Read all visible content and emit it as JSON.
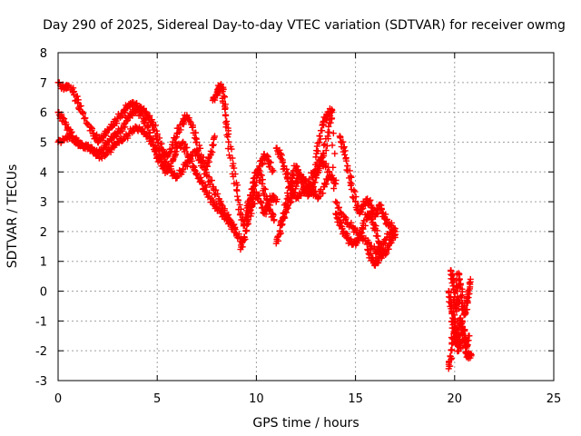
{
  "chart_data": {
    "type": "scatter",
    "title": "Day 290 of 2025, Sidereal Day-to-day VTEC variation (SDTVAR) for receiver owmg",
    "xlabel": "GPS time / hours",
    "ylabel": "SDTVAR / TECUs",
    "xlim": [
      0,
      25
    ],
    "ylim": [
      -3,
      8
    ],
    "xticks": [
      0,
      5,
      10,
      15,
      20,
      25
    ],
    "yticks": [
      -3,
      -2,
      -1,
      0,
      1,
      2,
      3,
      4,
      5,
      6,
      7,
      8
    ],
    "grid": true,
    "marker": "+",
    "color": "#ff0000",
    "series": [
      {
        "name": "SDTVAR",
        "segments": [
          {
            "x": [
              0.0,
              0.3,
              0.5,
              0.8,
              1.0,
              1.2,
              1.5,
              1.8,
              2.0,
              2.3,
              2.5,
              2.8,
              3.0,
              3.3,
              3.5,
              3.8,
              4.0,
              4.2,
              4.4,
              4.6,
              4.8,
              5.0,
              5.2,
              5.5,
              5.8,
              6.0,
              6.3,
              6.5,
              6.8,
              7.0,
              7.2,
              7.5,
              7.7,
              7.9
            ],
            "y": [
              7.0,
              6.8,
              6.9,
              6.7,
              6.3,
              6.0,
              5.6,
              5.3,
              5.0,
              5.2,
              5.4,
              5.6,
              5.8,
              6.0,
              6.2,
              6.3,
              6.2,
              6.1,
              6.0,
              5.8,
              5.6,
              5.2,
              4.8,
              4.5,
              4.9,
              5.3,
              5.7,
              5.9,
              5.5,
              5.0,
              4.5,
              4.2,
              4.6,
              5.2
            ]
          },
          {
            "x": [
              0.0,
              0.2,
              0.5,
              0.7,
              1.0,
              1.3,
              1.5,
              1.8,
              2.0,
              2.3,
              2.5,
              2.8,
              3.0,
              3.3,
              3.5,
              3.8,
              4.0,
              4.3,
              4.5,
              4.8,
              5.0,
              5.3,
              5.5,
              5.8,
              6.0,
              6.3,
              6.5,
              6.8,
              7.0,
              7.3,
              7.5,
              7.8,
              8.0,
              8.3,
              8.5,
              8.7,
              8.9
            ],
            "y": [
              6.0,
              5.8,
              5.5,
              5.2,
              5.0,
              4.8,
              4.9,
              4.7,
              4.6,
              4.8,
              5.0,
              5.2,
              5.3,
              5.5,
              5.8,
              6.0,
              6.1,
              5.8,
              5.5,
              5.0,
              4.5,
              4.2,
              4.0,
              4.4,
              4.8,
              5.0,
              4.6,
              4.2,
              3.9,
              3.6,
              3.3,
              3.0,
              2.8,
              2.6,
              2.4,
              2.3,
              2.1
            ]
          },
          {
            "x": [
              0.0,
              0.3,
              0.6,
              0.9,
              1.2,
              1.5,
              1.8,
              2.1,
              2.4,
              2.7,
              3.0,
              3.3,
              3.6,
              3.9,
              4.2,
              4.5,
              4.8,
              5.1,
              5.4,
              5.7,
              6.0,
              6.3,
              6.6,
              6.9,
              7.2,
              7.5,
              7.8,
              8.1,
              8.4,
              8.7,
              9.0,
              9.3
            ],
            "y": [
              5.0,
              5.1,
              5.2,
              5.0,
              4.9,
              4.8,
              4.7,
              4.5,
              4.6,
              4.8,
              5.0,
              5.1,
              5.3,
              5.5,
              5.4,
              5.2,
              4.9,
              4.6,
              4.3,
              4.0,
              3.8,
              4.1,
              4.4,
              4.7,
              4.3,
              3.9,
              3.5,
              3.1,
              2.7,
              2.3,
              1.9,
              1.7
            ]
          },
          {
            "x": [
              7.8,
              8.0,
              8.1,
              8.2,
              8.3,
              8.4,
              8.5,
              8.6,
              8.8,
              9.0,
              9.2,
              9.4,
              9.6,
              9.8,
              10.0,
              10.2,
              10.4,
              10.6,
              10.8
            ],
            "y": [
              6.4,
              6.6,
              6.8,
              6.9,
              6.7,
              6.2,
              5.6,
              5.0,
              4.2,
              3.4,
              2.6,
              2.2,
              2.6,
              3.2,
              3.8,
              4.2,
              4.6,
              4.4,
              4.0
            ]
          },
          {
            "x": [
              9.2,
              9.4,
              9.6,
              9.8,
              10.0,
              10.2,
              10.4,
              10.6,
              10.8,
              11.0
            ],
            "y": [
              1.4,
              1.8,
              2.4,
              2.9,
              3.3,
              3.0,
              2.6,
              2.9,
              3.2,
              3.0
            ]
          },
          {
            "x": [
              9.5,
              9.7,
              9.9,
              10.1,
              10.3,
              10.5,
              10.7,
              10.9
            ],
            "y": [
              2.7,
              3.2,
              3.8,
              4.1,
              3.6,
              3.1,
              2.7,
              2.4
            ]
          },
          {
            "x": [
              11.0,
              11.2,
              11.4,
              11.6,
              11.8,
              12.0,
              12.2,
              12.4,
              12.6,
              12.8,
              13.0,
              13.2,
              13.4,
              13.6,
              13.8
            ],
            "y": [
              1.6,
              2.0,
              2.6,
              3.2,
              3.8,
              4.2,
              3.9,
              3.5,
              3.2,
              3.4,
              3.8,
              4.2,
              4.6,
              5.2,
              6.0
            ]
          },
          {
            "x": [
              11.0,
              11.2,
              11.4,
              11.6,
              11.8,
              12.0,
              12.3,
              12.6,
              12.9,
              13.2,
              13.5,
              13.8
            ],
            "y": [
              4.8,
              4.6,
              4.2,
              3.8,
              3.4,
              3.1,
              3.3,
              3.6,
              4.0,
              4.4,
              4.2,
              3.8
            ]
          },
          {
            "x": [
              11.2,
              11.4,
              11.6,
              11.8,
              12.0,
              12.2,
              12.5,
              12.8,
              13.1,
              13.4,
              13.7,
              14.0
            ],
            "y": [
              2.2,
              2.5,
              2.9,
              3.2,
              3.6,
              3.9,
              3.7,
              3.4,
              3.1,
              3.5,
              3.9,
              3.6
            ]
          },
          {
            "x": [
              13.0,
              13.2,
              13.4,
              13.6,
              13.8,
              14.0,
              14.3,
              14.6,
              14.9,
              15.2,
              15.5,
              15.8,
              16.1,
              16.4,
              16.7,
              17.0
            ],
            "y": [
              4.5,
              5.2,
              5.7,
              5.9,
              6.1,
              3.0,
              2.6,
              2.3,
              2.1,
              1.9,
              1.7,
              1.5,
              1.3,
              1.6,
              1.9,
              2.1
            ]
          },
          {
            "x": [
              14.0,
              14.2,
              14.4,
              14.6,
              14.8,
              15.0,
              15.2,
              15.4,
              15.6,
              15.8,
              16.0,
              16.2,
              16.4,
              16.6,
              16.8,
              17.0
            ],
            "y": [
              2.6,
              2.3,
              2.0,
              1.8,
              1.6,
              1.6,
              1.8,
              2.2,
              2.6,
              2.4,
              2.1,
              1.6,
              1.2,
              1.4,
              1.7,
              2.0
            ]
          },
          {
            "x": [
              14.2,
              14.4,
              14.6,
              14.8,
              15.0,
              15.2,
              15.4,
              15.6,
              15.8,
              16.0,
              16.2,
              16.4,
              16.6,
              16.8,
              17.0
            ],
            "y": [
              5.2,
              4.8,
              4.2,
              3.6,
              3.0,
              2.6,
              2.9,
              3.1,
              2.8,
              2.5,
              2.9,
              2.6,
              2.3,
              2.2,
              1.8
            ]
          },
          {
            "x": [
              15.6,
              15.8,
              16.0,
              16.2,
              16.4
            ],
            "y": [
              1.4,
              1.1,
              0.9,
              1.1,
              1.4
            ]
          },
          {
            "x": [
              19.7,
              19.8,
              19.9,
              20.0,
              20.1,
              20.2,
              20.3,
              20.4,
              20.5,
              20.6,
              20.7,
              20.8
            ],
            "y": [
              -2.6,
              -2.2,
              -1.6,
              -0.8,
              0.0,
              0.6,
              0.2,
              -0.4,
              -0.8,
              -0.4,
              -0.1,
              0.4
            ]
          },
          {
            "x": [
              19.7,
              19.8,
              19.9,
              20.0,
              20.1,
              20.2,
              20.3,
              20.4,
              20.5,
              20.6,
              20.7
            ],
            "y": [
              0.0,
              -0.4,
              -0.9,
              -1.4,
              -1.8,
              -1.3,
              -0.9,
              -1.2,
              -1.6,
              -1.9,
              -1.5
            ]
          },
          {
            "x": [
              20.0,
              20.1,
              20.2,
              20.3,
              20.4,
              20.5,
              20.6,
              20.7,
              20.8
            ],
            "y": [
              -1.0,
              -1.5,
              -2.0,
              -1.7,
              -1.2,
              -1.6,
              -2.1,
              -2.2,
              -2.1
            ]
          },
          {
            "x": [
              19.8,
              19.9,
              20.0,
              20.1,
              20.2
            ],
            "y": [
              0.7,
              0.4,
              -0.2,
              -0.6,
              -0.3
            ]
          }
        ]
      }
    ]
  }
}
